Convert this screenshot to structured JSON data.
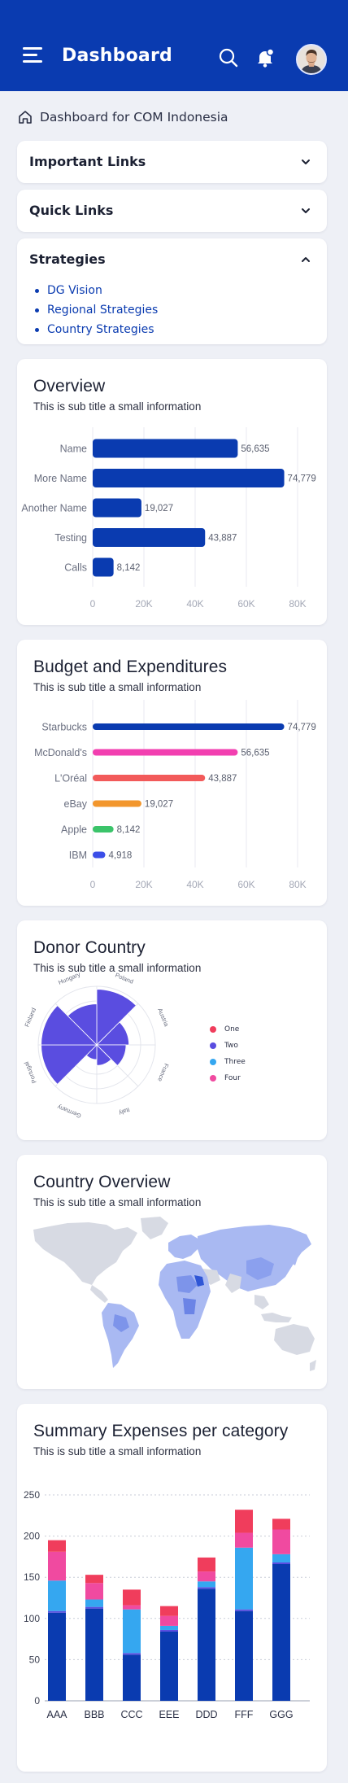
{
  "header": {
    "title": "Dashboard",
    "brand_color": "#0a3bb0",
    "icons": [
      "menu-icon",
      "search-icon",
      "bell-icon",
      "avatar"
    ]
  },
  "breadcrumb": {
    "text": "Dashboard for COM Indonesia",
    "icon": "home-icon"
  },
  "accordions": [
    {
      "title": "Important Links",
      "expanded": false
    },
    {
      "title": "Quick Links",
      "expanded": false
    },
    {
      "title": "Strategies",
      "expanded": true,
      "items": [
        "DG Vision",
        "Regional Strategies",
        "Country Strategies"
      ]
    }
  ],
  "overview": {
    "title": "Overview",
    "subtitle": "This is sub title a small information"
  },
  "budget": {
    "title": "Budget and Expenditures",
    "subtitle": "This is sub title a small information"
  },
  "donor": {
    "title": "Donor Country",
    "subtitle": "This is sub title a small information"
  },
  "country": {
    "title": "Country Overview",
    "subtitle": "This is sub title a small information"
  },
  "summary": {
    "title": "Summary Expenses per category",
    "subtitle": "This is sub title a small information"
  },
  "chart_data": [
    {
      "type": "bar",
      "orientation": "horizontal",
      "categories": [
        "Name",
        "More Name",
        "Another Name",
        "Testing",
        "Calls"
      ],
      "values": [
        56635,
        74779,
        19027,
        43887,
        8142
      ],
      "data_labels": [
        "56,635",
        "74,779",
        "19,027",
        "43,887",
        "8,142"
      ],
      "xticks": [
        "0",
        "20K",
        "40K",
        "60K",
        "80K"
      ],
      "xlim": [
        0,
        80000
      ],
      "color": "#0a3bb0",
      "grid": true
    },
    {
      "type": "bar",
      "orientation": "horizontal",
      "categories": [
        "Starbucks",
        "McDonald's",
        "L'Oréal",
        "eBay",
        "Apple",
        "IBM"
      ],
      "values": [
        74779,
        56635,
        43887,
        19027,
        8142,
        4918
      ],
      "data_labels": [
        "74,779",
        "56,635",
        "43,887",
        "19,027",
        "8,142",
        "4,918"
      ],
      "colors": [
        "#0a3bb0",
        "#f23fb0",
        "#f25a5a",
        "#f2962d",
        "#3bc46a",
        "#3b4ee8"
      ],
      "xticks": [
        "0",
        "20K",
        "40K",
        "60K",
        "80K"
      ],
      "xlim": [
        0,
        80000
      ],
      "grid": true
    },
    {
      "type": "polar-area",
      "categories": [
        "Poland",
        "Austria",
        "France",
        "Italy",
        "Germany",
        "Portugal",
        "Finland",
        "Hungary"
      ],
      "values": [
        0.95,
        0.55,
        0.5,
        0.35,
        0.25,
        0.95,
        0.95,
        0.7
      ],
      "series_legend": [
        "One",
        "Two",
        "Three",
        "Four"
      ],
      "legend_colors": [
        "#f03d5c",
        "#5a4de0",
        "#35a7f0",
        "#f04aa0"
      ],
      "legend_position": "right",
      "fill": "#5a4de0"
    },
    {
      "type": "stacked-bar",
      "categories": [
        "AAA",
        "BBB",
        "CCC",
        "EEE",
        "DDD",
        "FFF",
        "GGG"
      ],
      "yticks": [
        "0",
        "50",
        "100",
        "150",
        "200",
        "250"
      ],
      "ylim": [
        0,
        250
      ],
      "grid": true,
      "series": [
        {
          "color": "#0a3bb0",
          "values": [
            107,
            112,
            56,
            84,
            136,
            109,
            166
          ]
        },
        {
          "color": "#5a4de0",
          "values": [
            2,
            2,
            2,
            2,
            2,
            2,
            2
          ]
        },
        {
          "color": "#35a7f0",
          "values": [
            37,
            9,
            53,
            5,
            7,
            75,
            10
          ]
        },
        {
          "color": "#f04aa0",
          "values": [
            35,
            20,
            5,
            12,
            12,
            18,
            30
          ]
        },
        {
          "color": "#f03d5c",
          "values": [
            14,
            10,
            19,
            12,
            17,
            28,
            13
          ]
        }
      ]
    }
  ]
}
